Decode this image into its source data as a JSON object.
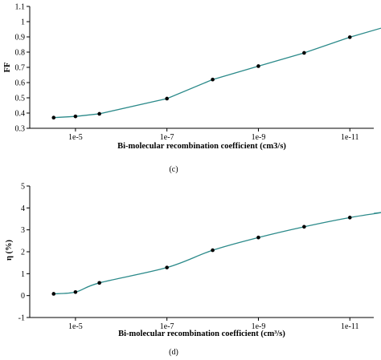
{
  "chart_data": [
    {
      "type": "line",
      "caption": "(c)",
      "xlabel": "Bi-molecular recombination coefficient (cm3/s)",
      "ylabel": "FF",
      "x_scale": "log (reversed)",
      "xlim": [
        0.0001,
        3e-12
      ],
      "x_tick_labels": [
        "1e-5",
        "1e-7",
        "1e-9",
        "1e-11"
      ],
      "x_tick_values": [
        1e-05,
        1e-07,
        1e-09,
        1e-11
      ],
      "ylim": [
        0.3,
        1.1
      ],
      "y_ticks": [
        0.3,
        0.4,
        0.5,
        0.6,
        0.7,
        0.8,
        0.9,
        1,
        1.1
      ],
      "y_tick_labels": [
        "0.3",
        "0.4",
        "0.5",
        "0.6",
        "0.7",
        "0.8",
        "0.9",
        "1",
        "1.1"
      ],
      "line_color": "#2b8a8a",
      "marker_color": "#000000",
      "smooth": false,
      "points": [
        {
          "x": 3e-05,
          "y": 0.37
        },
        {
          "x": 1e-05,
          "y": 0.378
        },
        {
          "x": 3e-06,
          "y": 0.395
        },
        {
          "x": 1e-07,
          "y": 0.495
        },
        {
          "x": 1e-08,
          "y": 0.62
        },
        {
          "x": 1e-09,
          "y": 0.708
        },
        {
          "x": 1e-10,
          "y": 0.795
        },
        {
          "x": 1e-11,
          "y": 0.898
        },
        {
          "x": 1e-12,
          "y": 0.985
        }
      ]
    },
    {
      "type": "line",
      "caption": "(d)",
      "xlabel": "Bi-molecular recombination coefficient (cm³/s)",
      "ylabel": "η (%)",
      "x_scale": "log (reversed)",
      "xlim": [
        0.0001,
        3e-12
      ],
      "x_tick_labels": [
        "1e-5",
        "1e-7",
        "1e-9",
        "1e-11"
      ],
      "x_tick_values": [
        1e-05,
        1e-07,
        1e-09,
        1e-11
      ],
      "ylim": [
        -1,
        5
      ],
      "y_ticks": [
        -1,
        0,
        1,
        2,
        3,
        4,
        5
      ],
      "y_tick_labels": [
        "-1",
        "0",
        "1",
        "2",
        "3",
        "4",
        "5"
      ],
      "line_color": "#2b8a8a",
      "marker_color": "#000000",
      "smooth": true,
      "points": [
        {
          "x": 3e-05,
          "y": 0.08
        },
        {
          "x": 1e-05,
          "y": 0.16
        },
        {
          "x": 3e-06,
          "y": 0.58
        },
        {
          "x": 1e-07,
          "y": 1.28
        },
        {
          "x": 1e-08,
          "y": 2.07
        },
        {
          "x": 1e-09,
          "y": 2.65
        },
        {
          "x": 1e-10,
          "y": 3.14
        },
        {
          "x": 1e-11,
          "y": 3.56
        },
        {
          "x": 1e-12,
          "y": 3.88
        }
      ]
    }
  ]
}
